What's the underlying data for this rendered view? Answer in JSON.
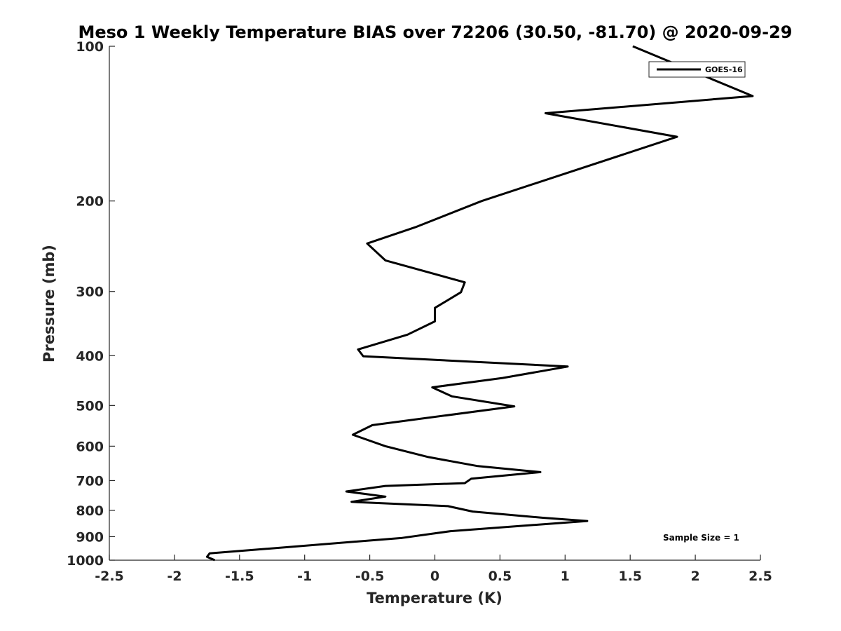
{
  "chart_data": {
    "type": "line",
    "title": "Meso 1 Weekly Temperature BIAS over 72206 (30.50, -81.70) @ 2020-09-29",
    "xlabel": "Temperature (K)",
    "ylabel": "Pressure (mb)",
    "xlim": [
      -2.5,
      2.5
    ],
    "ylim": [
      1000,
      100
    ],
    "y_scale": "log",
    "x_ticks": [
      "-2.5",
      "-2",
      "-1.5",
      "-1",
      "-0.5",
      "0",
      "0.5",
      "1",
      "1.5",
      "2",
      "2.5"
    ],
    "y_ticks": [
      "100",
      "200",
      "300",
      "400",
      "500",
      "600",
      "700",
      "800",
      "900",
      "1000"
    ],
    "grid": false,
    "legend": {
      "position": "top-right"
    },
    "series": [
      {
        "name": "GOES-16",
        "color": "#000000",
        "points": [
          [
            1.52,
            100
          ],
          [
            2.44,
            125
          ],
          [
            0.85,
            135
          ],
          [
            1.86,
            150
          ],
          [
            0.36,
            200
          ],
          [
            -0.15,
            225
          ],
          [
            -0.52,
            242
          ],
          [
            -0.38,
            261
          ],
          [
            0.23,
            288
          ],
          [
            0.2,
            301
          ],
          [
            0.0,
            323
          ],
          [
            0.0,
            343
          ],
          [
            -0.21,
            364
          ],
          [
            -0.59,
            389
          ],
          [
            -0.55,
            401
          ],
          [
            1.02,
            420
          ],
          [
            0.52,
            442
          ],
          [
            -0.02,
            461
          ],
          [
            0.13,
            480
          ],
          [
            0.61,
            502
          ],
          [
            -0.48,
            546
          ],
          [
            -0.63,
            570
          ],
          [
            -0.38,
            600
          ],
          [
            -0.05,
            630
          ],
          [
            0.33,
            656
          ],
          [
            0.81,
            674
          ],
          [
            0.28,
            694
          ],
          [
            0.23,
            708
          ],
          [
            -0.38,
            717
          ],
          [
            -0.68,
            735
          ],
          [
            -0.38,
            752
          ],
          [
            -0.64,
            770
          ],
          [
            0.1,
            785
          ],
          [
            0.29,
            804
          ],
          [
            0.83,
            827
          ],
          [
            1.17,
            839
          ],
          [
            0.12,
            878
          ],
          [
            -0.25,
            905
          ],
          [
            -1.73,
            970
          ],
          [
            -1.75,
            985
          ],
          [
            -1.69,
            1000
          ]
        ]
      }
    ],
    "annotation": "Sample Size = 1"
  }
}
